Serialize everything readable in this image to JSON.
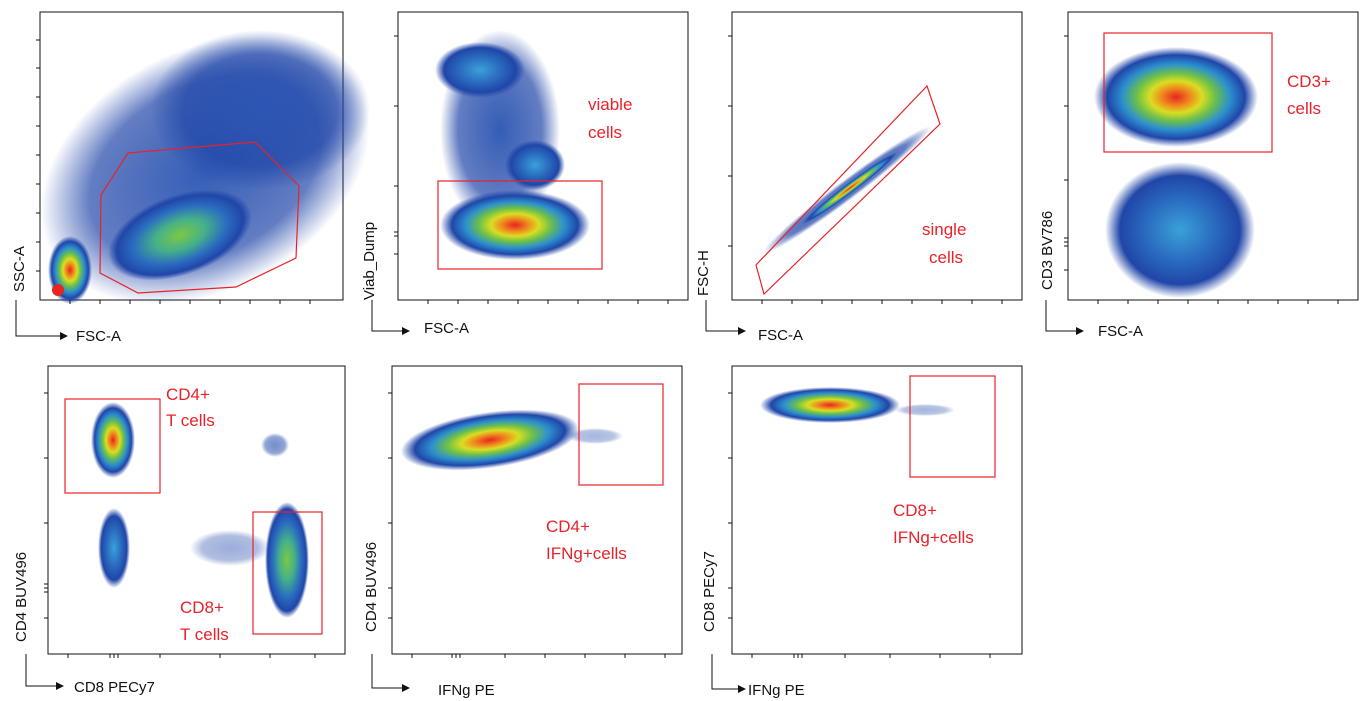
{
  "figure": {
    "panels": [
      {
        "id": "p1",
        "x_label": "FSC-A",
        "y_label": "SSC-A",
        "gates": []
      },
      {
        "id": "p2",
        "x_label": "FSC-A",
        "y_label": "Viab_Dump",
        "gates": [
          {
            "lines": [
              "viable",
              "cells"
            ]
          }
        ]
      },
      {
        "id": "p3",
        "x_label": "FSC-A",
        "y_label": "FSC-H",
        "gates": [
          {
            "lines": [
              "single",
              "cells"
            ]
          }
        ]
      },
      {
        "id": "p4",
        "x_label": "FSC-A",
        "y_label": "CD3 BV786",
        "gates": [
          {
            "lines": [
              "CD3+",
              "cells"
            ]
          }
        ]
      },
      {
        "id": "p5",
        "x_label": "CD8 PECy7",
        "y_label": "CD4 BUV496",
        "gates": [
          {
            "lines": [
              "CD4+",
              "T cells"
            ]
          },
          {
            "lines": [
              "CD8+",
              "T cells"
            ]
          }
        ]
      },
      {
        "id": "p6",
        "x_label": "IFNg PE",
        "y_label": "CD4 BUV496",
        "gates": [
          {
            "lines": [
              "CD4+",
              "IFNg+cells"
            ]
          }
        ]
      },
      {
        "id": "p7",
        "x_label": "IFNg PE",
        "y_label": "CD8  PECy7",
        "gates": [
          {
            "lines": [
              "CD8+",
              "IFNg+cells"
            ]
          }
        ]
      }
    ],
    "colors": {
      "gate": "#e8222a",
      "density_low": "#1f3f9a",
      "density_high": "#e8251f"
    }
  }
}
